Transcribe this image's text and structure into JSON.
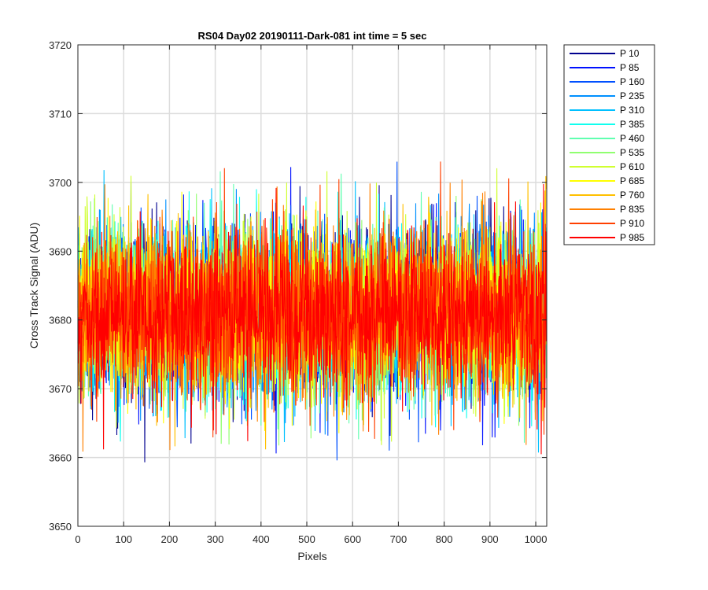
{
  "chart_data": {
    "type": "line",
    "title": "RS04 Day02 20190111-Dark-081 int time = 5 sec",
    "xlabel": "Pixels",
    "ylabel": "Cross Track Signal (ADU)",
    "xlim": [
      0,
      1024
    ],
    "ylim": [
      3650,
      3720
    ],
    "xticks": [
      0,
      100,
      200,
      300,
      400,
      500,
      600,
      700,
      800,
      900,
      1000
    ],
    "yticks": [
      3650,
      3660,
      3670,
      3680,
      3690,
      3700,
      3710,
      3720
    ],
    "grid": true,
    "legend_position": "outside-top-right",
    "noise": {
      "mean": 3681,
      "amplitude": 10,
      "samples_per_series": 1024
    },
    "series": [
      {
        "name": "P 10",
        "color": "#00008f"
      },
      {
        "name": "P 85",
        "color": "#0010ff"
      },
      {
        "name": "P 160",
        "color": "#0050ff"
      },
      {
        "name": "P 235",
        "color": "#0090ff"
      },
      {
        "name": "P 310",
        "color": "#00c0ff"
      },
      {
        "name": "P 385",
        "color": "#10ffef"
      },
      {
        "name": "P 460",
        "color": "#60ffb0"
      },
      {
        "name": "P 535",
        "color": "#90ff70"
      },
      {
        "name": "P 610",
        "color": "#d0ff30"
      },
      {
        "name": "P 685",
        "color": "#ffff00"
      },
      {
        "name": "P 760",
        "color": "#ffc000"
      },
      {
        "name": "P 835",
        "color": "#ff8000"
      },
      {
        "name": "P 910",
        "color": "#ff4000"
      },
      {
        "name": "P 985",
        "color": "#ff0000"
      }
    ]
  }
}
